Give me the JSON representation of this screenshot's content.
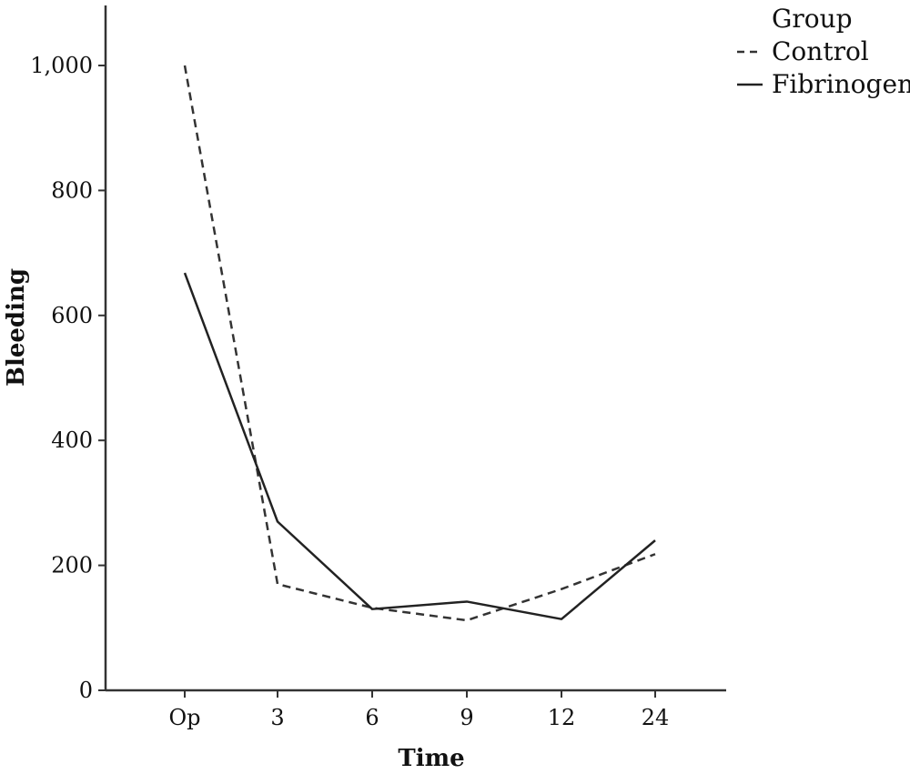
{
  "chart_data": {
    "type": "line",
    "title": "",
    "xlabel": "Time",
    "ylabel": "Bleeding",
    "categories": [
      "Op",
      "3",
      "6",
      "9",
      "12",
      "24"
    ],
    "ylim": [
      0,
      1100
    ],
    "yticks": [
      0,
      200,
      400,
      600,
      800,
      1000
    ],
    "ytick_labels": [
      "0",
      "200",
      "400",
      "600",
      "800",
      "1,000"
    ],
    "grid": false,
    "legend": {
      "title": "Group",
      "placement": "top-right"
    },
    "series": [
      {
        "name": "Control",
        "values": [
          1000,
          170,
          132,
          112,
          162,
          218
        ],
        "color": "#333333",
        "line_style": "dashed"
      },
      {
        "name": "Fibrinogen",
        "values": [
          668,
          270,
          130,
          142,
          114,
          240
        ],
        "color": "#222222",
        "line_style": "solid"
      }
    ]
  }
}
